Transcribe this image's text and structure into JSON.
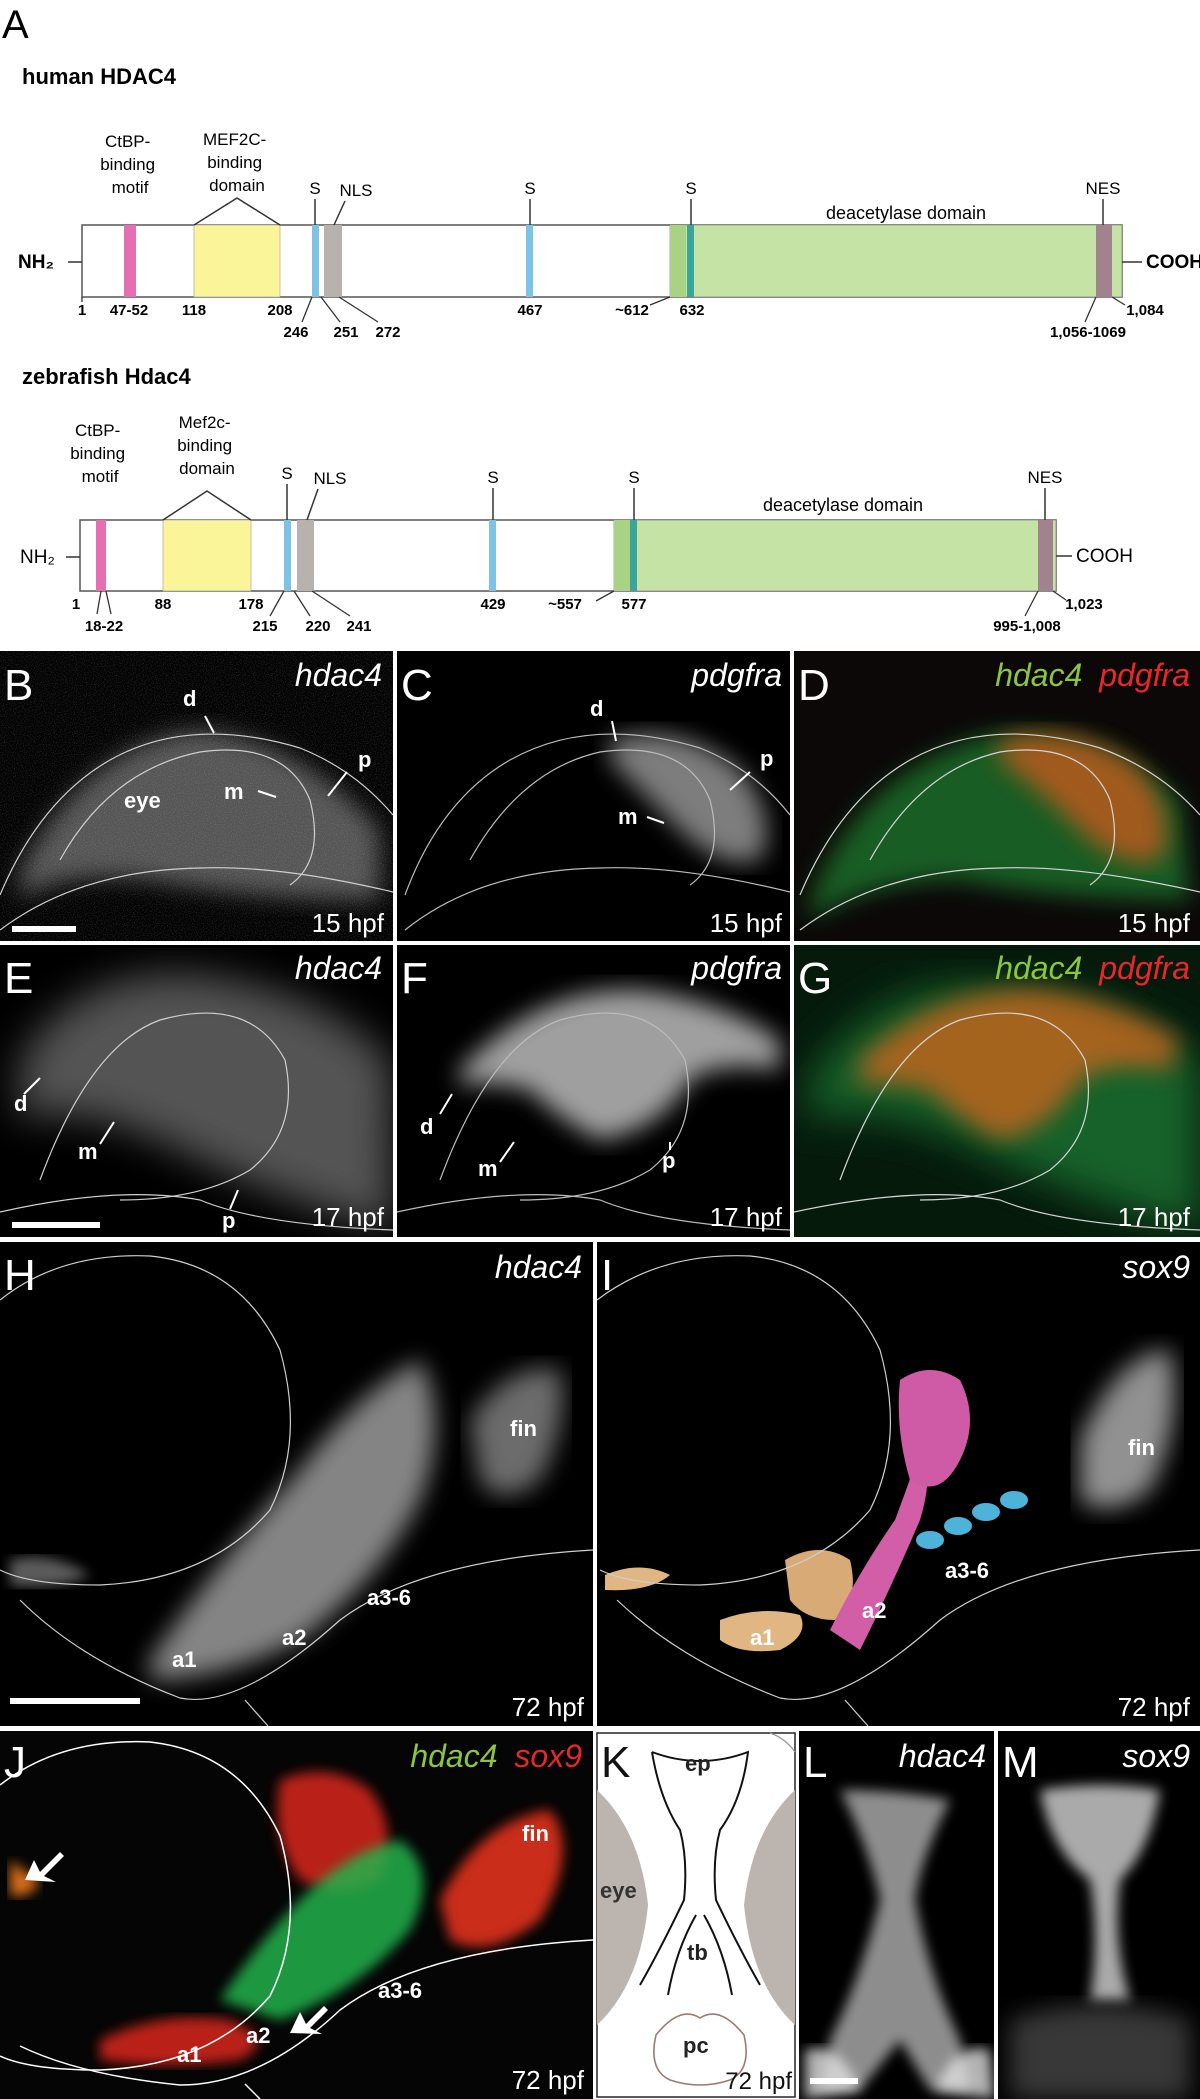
{
  "panel_a": {
    "letter": "A",
    "human": {
      "title": "human HDAC4",
      "nterm": "NH₂",
      "cterm": "COOH",
      "motif1": [
        "CtBP-",
        "binding",
        "motif"
      ],
      "motif2": [
        "MEF2C-",
        "binding",
        "domain"
      ],
      "s": "S",
      "nls": "NLS",
      "nes": "NES",
      "deac": "deacetylase domain",
      "pos": {
        "p1": "1",
        "p2": "47-52",
        "p3": "118",
        "p4": "208",
        "p5": "246",
        "p6": "251",
        "p7": "272",
        "p8": "467",
        "p9": "~612",
        "p10": "632",
        "p11": "1,056-1069",
        "p12": "1,084"
      }
    },
    "zebrafish": {
      "title": "zebrafish Hdac4",
      "nterm": "NH₂",
      "cterm": "COOH",
      "motif1": [
        "CtBP-",
        "binding",
        "motif"
      ],
      "motif2": [
        "Mef2c-",
        "binding",
        "domain"
      ],
      "s": "S",
      "nls": "NLS",
      "nes": "NES",
      "deac": "deacetylase domain",
      "pos": {
        "p1": "1",
        "p2": "18-22",
        "p3": "88",
        "p4": "178",
        "p5": "215",
        "p6": "220",
        "p7": "241",
        "p8": "429",
        "p9": "~557",
        "p10": "577",
        "p11": "995-1,008",
        "p12": "1,023"
      }
    },
    "colors": {
      "ctbp": "#e66fb4",
      "mef2": "#fbf59a",
      "s": "#7ec3e6",
      "nls": "#b7b2ad",
      "deac": "#c4e3a4",
      "nes": "#a1838e",
      "s_dark": "#3aa59a"
    }
  },
  "panel_b": {
    "letter": "B",
    "gene": "hdac4",
    "stage": "15 hpf",
    "d": "d",
    "p": "p",
    "m": "m",
    "eye": "eye"
  },
  "panel_c": {
    "letter": "C",
    "gene": "pdgfra",
    "stage": "15 hpf",
    "d": "d",
    "p": "p",
    "m": "m"
  },
  "panel_d": {
    "letter": "D",
    "gene1": "hdac4",
    "gene2": "pdgfra",
    "stage": "15 hpf"
  },
  "panel_e": {
    "letter": "E",
    "gene": "hdac4",
    "stage": "17 hpf",
    "d": "d",
    "m": "m",
    "p": "p"
  },
  "panel_f": {
    "letter": "F",
    "gene": "pdgfra",
    "stage": "17 hpf",
    "d": "d",
    "m": "m",
    "p": "p"
  },
  "panel_g": {
    "letter": "G",
    "gene1": "hdac4",
    "gene2": "pdgfra",
    "stage": "17 hpf"
  },
  "panel_h": {
    "letter": "H",
    "gene": "hdac4",
    "stage": "72 hpf",
    "fin": "fin",
    "a36": "a3-6",
    "a2": "a2",
    "a1": "a1"
  },
  "panel_i": {
    "letter": "I",
    "gene": "sox9",
    "stage": "72 hpf",
    "fin": "fin",
    "a36": "a3-6",
    "a2": "a2",
    "a1": "a1"
  },
  "panel_j": {
    "letter": "J",
    "gene1": "hdac4",
    "gene2": "sox9",
    "stage": "72 hpf",
    "fin": "fin",
    "a36": "a3-6",
    "a2": "a2",
    "a1": "a1"
  },
  "panel_k": {
    "letter": "K",
    "ep": "ep",
    "eye": "eye",
    "tb": "tb",
    "pc": "pc",
    "stage": "72 hpf"
  },
  "panel_l": {
    "letter": "L",
    "gene": "hdac4"
  },
  "panel_m": {
    "letter": "M",
    "gene": "sox9"
  },
  "label_colors": {
    "green": "#8cc63f",
    "red": "#e8262b"
  }
}
